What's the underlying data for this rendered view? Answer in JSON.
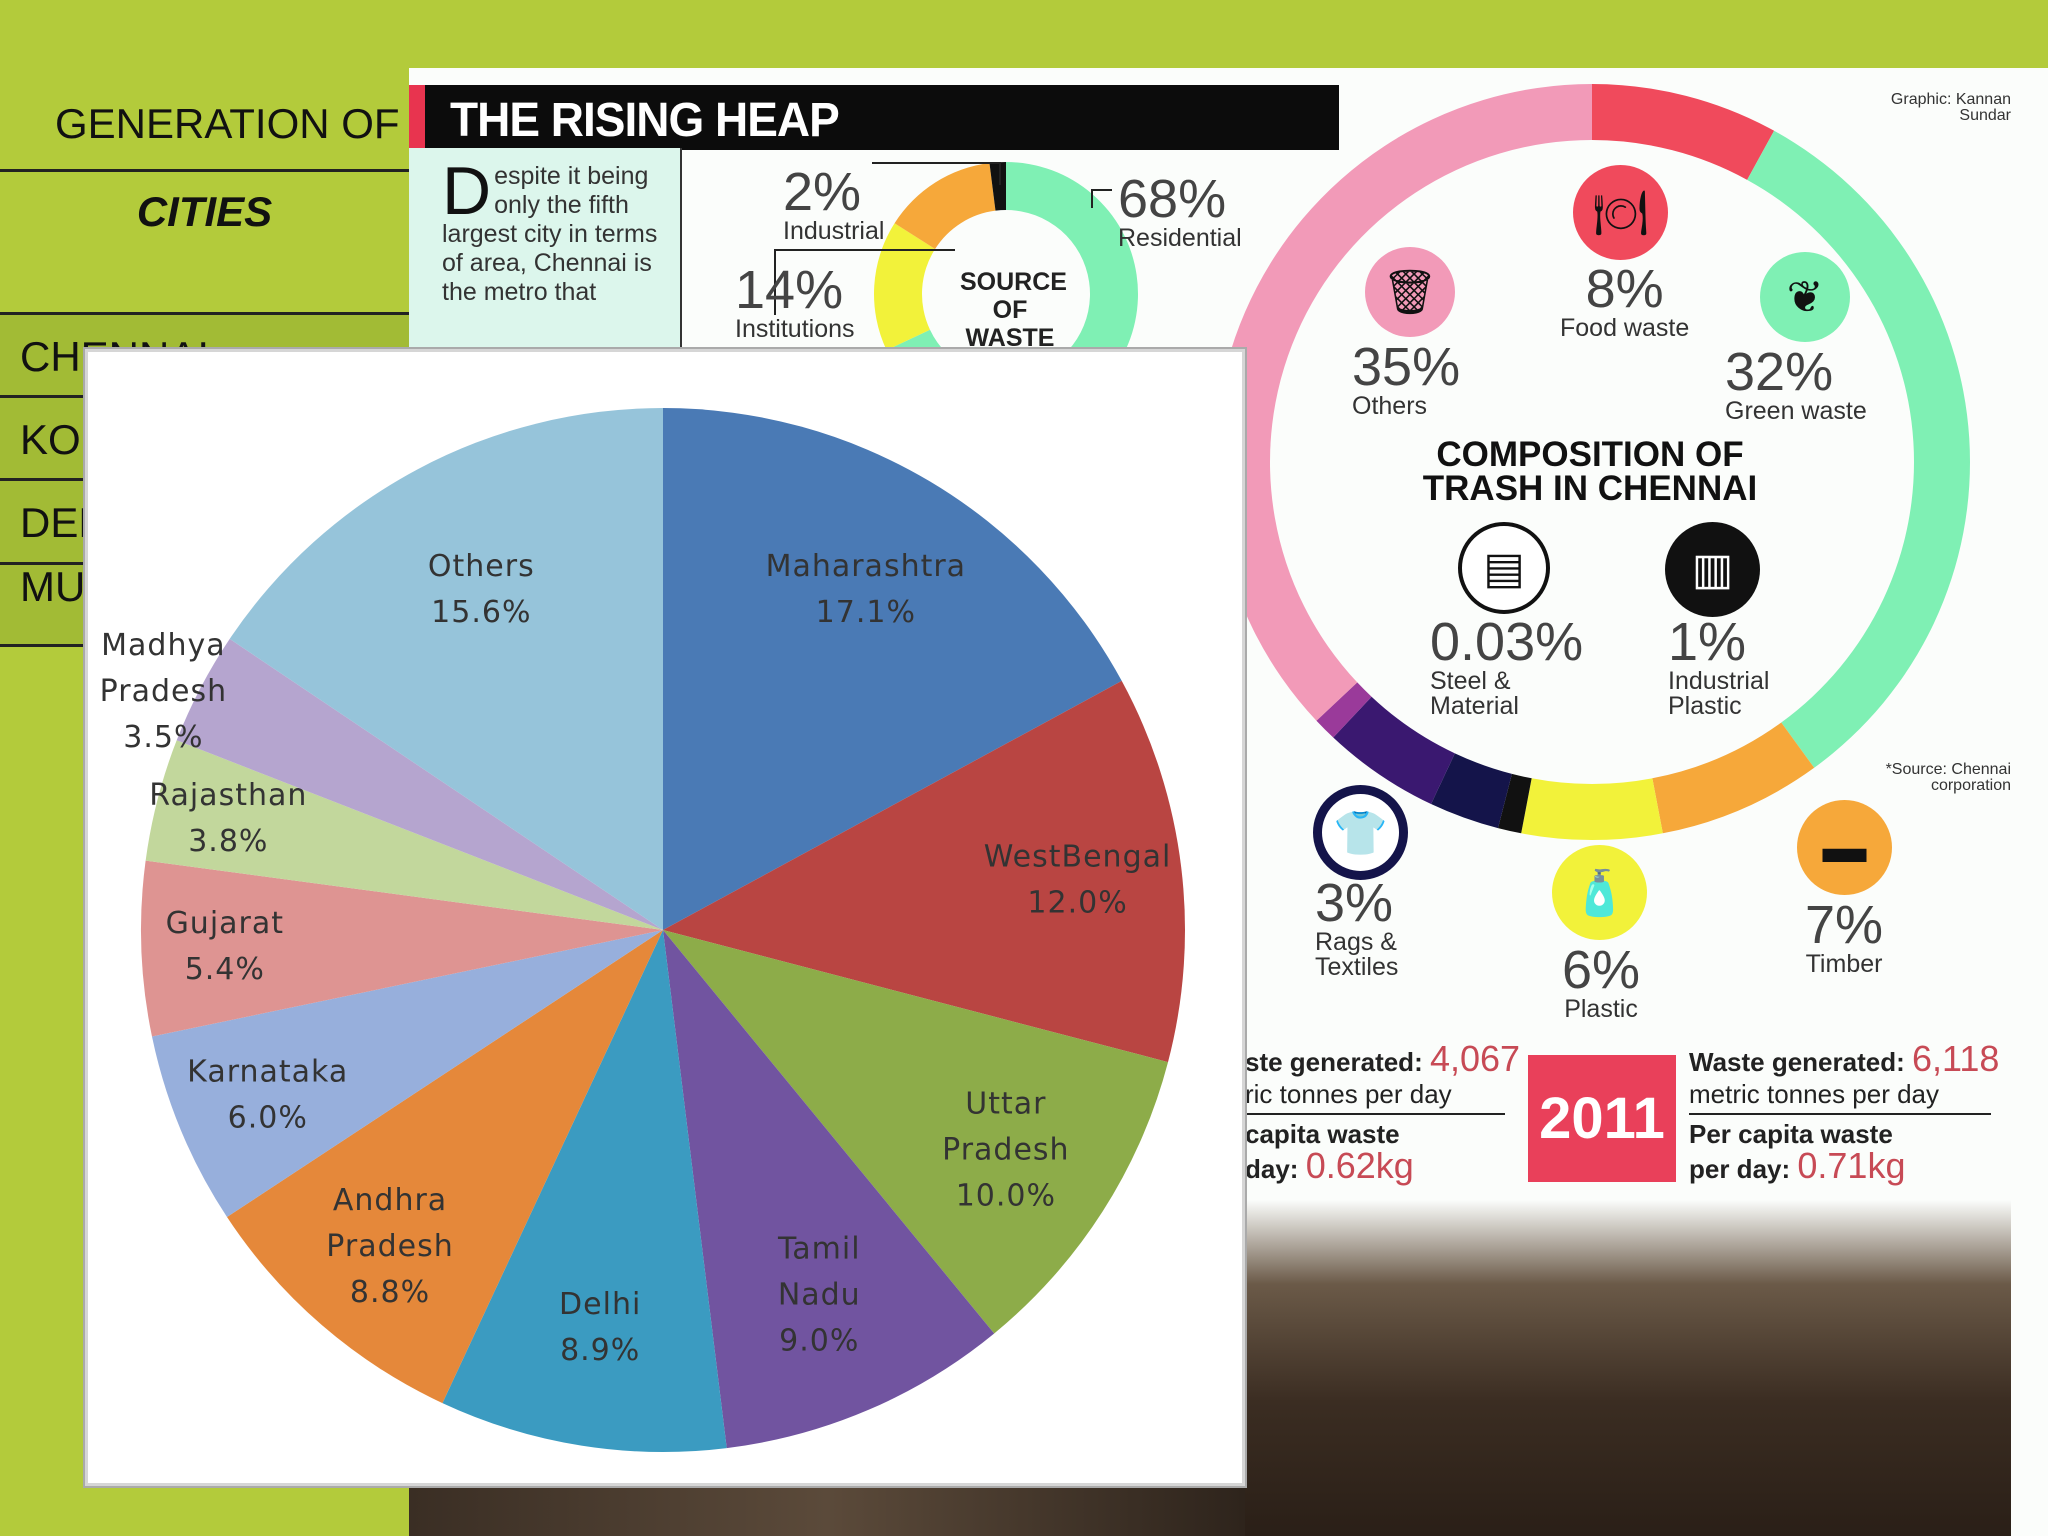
{
  "slide": {
    "title": "GENERATION OF",
    "table": {
      "header": "CITIES",
      "rows": [
        "CHENNAI",
        "KOLKATA",
        "DELHI",
        "MUMBAI"
      ]
    }
  },
  "infographic": {
    "title": "THE RISING HEAP",
    "intro_drop": "D",
    "intro": "espite it being only the fifth largest city in terms of area, Chennai is the metro that",
    "credit": "Graphic: Kannan Sundar",
    "source_of_waste": {
      "title_1": "SOURCE",
      "title_2": "OF WASTE",
      "items": [
        {
          "pct": "68%",
          "label": "Residential",
          "color": "#7ff0b4"
        },
        {
          "pct": "2%",
          "label": "Industrial",
          "color": "#111111"
        },
        {
          "pct": "14%",
          "label": "Institutions",
          "color": "#f6a83a"
        }
      ],
      "hidden_color": "#f2f23a"
    },
    "composition": {
      "title_1": "COMPOSITION OF",
      "title_2": "TRASH IN CHENNAI",
      "items": [
        {
          "pct": "8%",
          "label": "Food waste",
          "color": "#f04a5c",
          "icon": "plate-cutlery-icon"
        },
        {
          "pct": "32%",
          "label": "Green waste",
          "color": "#7ff0b4",
          "icon": "leaf-icon"
        },
        {
          "pct": "7%",
          "label": "Timber",
          "color": "#f6a83a",
          "icon": "log-icon"
        },
        {
          "pct": "6%",
          "label": "Plastic",
          "color": "#f2f23a",
          "icon": "bottle-icon"
        },
        {
          "pct": "1%",
          "label": "Industrial Plastic",
          "label_1": "Industrial",
          "label_2": "Plastic",
          "color": "#111111",
          "icon": "factory-icon"
        },
        {
          "pct": "0.03%",
          "label": "Steel & Material",
          "label_1": "Steel &",
          "label_2": "Material",
          "color": "#ffffff",
          "icon": "steel-bars-icon"
        },
        {
          "pct": "3%",
          "label": "Rags & Textiles",
          "label_1": "Rags &",
          "label_2": "Textiles",
          "color": "#14144a",
          "icon": "tshirt-icon"
        },
        {
          "pct": "35%",
          "label": "Others",
          "color": "#f29ab8",
          "icon": "trash-bin-icon"
        }
      ],
      "extra_color": "#3a1870",
      "source_note_1": "*Source: Chennai",
      "source_note_2": "corporation"
    },
    "stats_left": {
      "line1_label": "ste generated:",
      "line1_value": "4,067",
      "line2": "ric tonnes per day",
      "line3": "capita waste",
      "line4_label": "day:",
      "line4_value": "0.62kg"
    },
    "year": "2011",
    "stats_right": {
      "line1_label": "Waste generated:",
      "line1_value": "6,118",
      "line2": "metric tonnes per day",
      "line3": "Per capita waste",
      "line4_label": "per day:",
      "line4_value": "0.71kg"
    }
  },
  "chart_data": {
    "type": "pie",
    "start": "top",
    "direction": "clockwise",
    "slices": [
      {
        "name": "Maharashtra",
        "value": 17.1,
        "label": "17.1%",
        "color": "#4a7ab5"
      },
      {
        "name": "West Bengal",
        "value": 12.0,
        "label": "12.0%",
        "color": "#b94542"
      },
      {
        "name": "Uttar Pradesh",
        "value": 10.0,
        "label": "10.0%",
        "color": "#8dac49"
      },
      {
        "name": "Tamil Nadu",
        "value": 9.0,
        "label": "9.0%",
        "color": "#7154a0"
      },
      {
        "name": "Delhi",
        "value": 8.9,
        "label": "8.9%",
        "color": "#3b9bc1"
      },
      {
        "name": "Andhra Pradesh",
        "value": 8.8,
        "label": "8.8%",
        "color": "#e5883a"
      },
      {
        "name": "Karnataka",
        "value": 6.0,
        "label": "6.0%",
        "color": "#97afdc"
      },
      {
        "name": "Gujarat",
        "value": 5.4,
        "label": "5.4%",
        "color": "#de9492"
      },
      {
        "name": "Rajasthan",
        "value": 3.8,
        "label": "3.8%",
        "color": "#c2d79c"
      },
      {
        "name": "Madhya Pradesh",
        "value": 3.5,
        "label": "3.5%",
        "color": "#b5a5cf"
      },
      {
        "name": "Others",
        "value": 15.6,
        "label": "15.6%",
        "color": "#96c4da"
      }
    ]
  }
}
